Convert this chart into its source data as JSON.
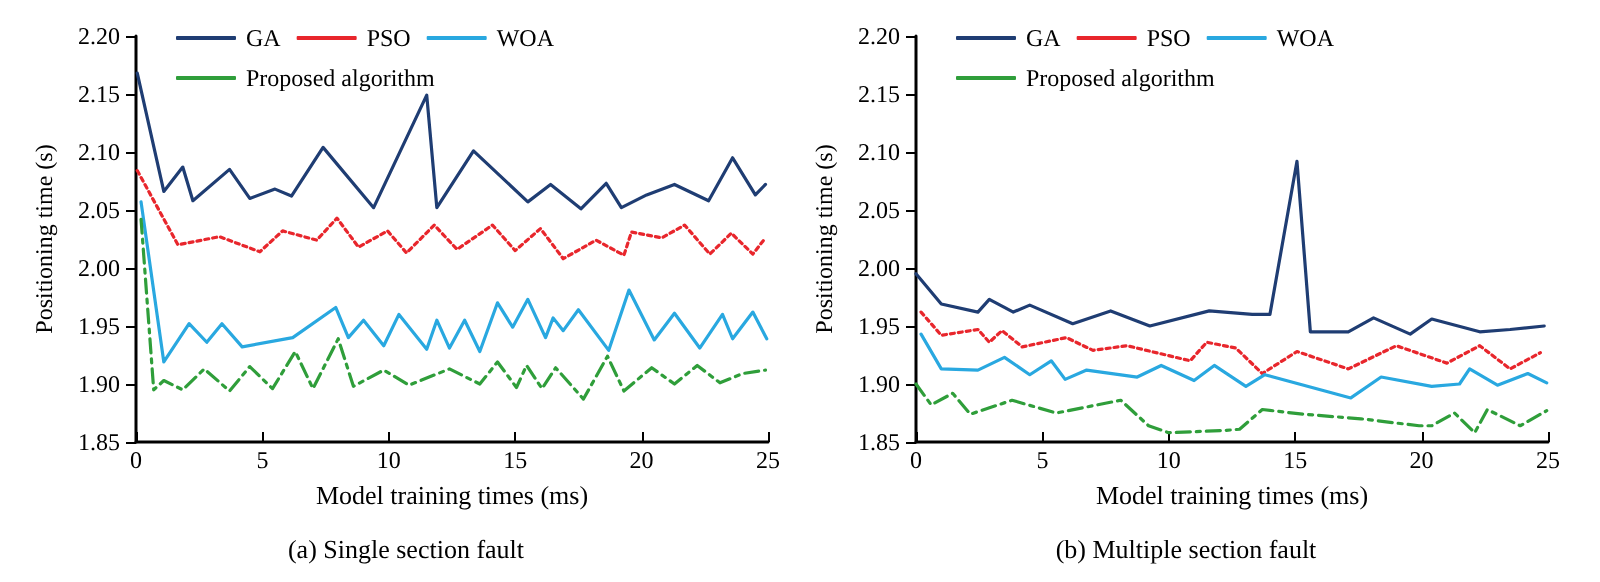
{
  "chart_data": [
    {
      "type": "line",
      "xlabel": "Model training times (ms)",
      "ylabel": "Positioning time (s)",
      "annotations": [
        "(a) Single section fault"
      ],
      "xlim": [
        0,
        25
      ],
      "xticks": [
        0,
        5,
        10,
        15,
        20,
        25
      ],
      "ylim": [
        1.85,
        2.2
      ],
      "yticks": [
        {
          "value": 1.85,
          "label": "1.85"
        },
        {
          "value": 1.9,
          "label": "1.90"
        },
        {
          "value": 1.95,
          "label": "1.95"
        },
        {
          "value": 2.0,
          "label": "2.00"
        },
        {
          "value": 2.05,
          "label": "2.05"
        },
        {
          "value": 2.1,
          "label": "2.10"
        },
        {
          "value": 2.15,
          "label": "2.15"
        },
        {
          "value": 2.2,
          "label": "2.20"
        }
      ],
      "grid": false,
      "legend": "top",
      "marker": "none",
      "series": [
        {
          "name": "GA",
          "color": "#1f3d73",
          "line_style": "solid",
          "x": [
            0.05,
            1.1,
            1.85,
            2.25,
            3.7,
            4.5,
            5.5,
            6.15,
            7.4,
            9.4,
            11.5,
            11.9,
            13.35,
            15.5,
            16.4,
            17.6,
            18.6,
            19.2,
            20.2,
            21.3,
            22.65,
            23.6,
            24.5,
            24.9
          ],
          "values": [
            2.168,
            2.066,
            2.087,
            2.058,
            2.085,
            2.06,
            2.068,
            2.062,
            2.104,
            2.052,
            2.149,
            2.052,
            2.101,
            2.057,
            2.072,
            2.051,
            2.073,
            2.052,
            2.063,
            2.072,
            2.058,
            2.095,
            2.063,
            2.072
          ]
        },
        {
          "name": "PSO",
          "color": "#e8262c",
          "line_style": "dotted",
          "x": [
            0.05,
            1.66,
            3.3,
            4.9,
            5.8,
            7.15,
            7.95,
            8.8,
            9.95,
            10.7,
            11.8,
            12.7,
            14.1,
            15.0,
            16.0,
            16.9,
            18.2,
            19.3,
            19.6,
            20.8,
            21.7,
            22.7,
            23.55,
            24.4,
            24.9
          ],
          "values": [
            2.084,
            2.02,
            2.027,
            2.014,
            2.032,
            2.024,
            2.043,
            2.018,
            2.032,
            2.013,
            2.037,
            2.016,
            2.037,
            2.015,
            2.034,
            2.008,
            2.024,
            2.011,
            2.031,
            2.026,
            2.037,
            2.012,
            2.03,
            2.012,
            2.026
          ]
        },
        {
          "name": "WOA",
          "color": "#29a8e0",
          "line_style": "solid",
          "x": [
            0.2,
            1.1,
            2.1,
            2.8,
            3.4,
            4.2,
            6.2,
            7.9,
            8.4,
            9.0,
            9.8,
            10.4,
            11.5,
            11.9,
            12.4,
            13.0,
            13.6,
            14.3,
            14.9,
            15.5,
            16.2,
            16.5,
            16.9,
            17.5,
            18.7,
            19.5,
            20.5,
            21.3,
            22.3,
            23.2,
            23.6,
            24.4,
            24.95
          ],
          "values": [
            2.057,
            1.919,
            1.952,
            1.936,
            1.952,
            1.932,
            1.94,
            1.966,
            1.94,
            1.955,
            1.933,
            1.96,
            1.93,
            1.955,
            1.931,
            1.955,
            1.928,
            1.97,
            1.949,
            1.973,
            1.94,
            1.957,
            1.946,
            1.964,
            1.929,
            1.981,
            1.938,
            1.961,
            1.931,
            1.96,
            1.939,
            1.962,
            1.939
          ]
        },
        {
          "name": "Proposed algorithm",
          "color": "#2f9e3a",
          "line_style": "dashed",
          "x": [
            0.2,
            0.7,
            1.1,
            1.85,
            2.7,
            3.7,
            4.5,
            5.4,
            6.3,
            7.0,
            8.0,
            8.6,
            9.8,
            10.8,
            12.4,
            13.6,
            14.3,
            15.05,
            15.45,
            16.06,
            16.6,
            17.7,
            18.65,
            19.3,
            20.4,
            21.3,
            22.2,
            23.1,
            24.0,
            24.9
          ],
          "values": [
            2.042,
            1.895,
            1.903,
            1.895,
            1.913,
            1.894,
            1.915,
            1.896,
            1.928,
            1.896,
            1.939,
            1.898,
            1.912,
            1.899,
            1.913,
            1.9,
            1.919,
            1.897,
            1.916,
            1.896,
            1.914,
            1.887,
            1.924,
            1.894,
            1.914,
            1.9,
            1.916,
            1.901,
            1.909,
            1.912
          ]
        }
      ]
    },
    {
      "type": "line",
      "xlabel": "Model training times (ms)",
      "ylabel": "Positioning time (s)",
      "annotations": [
        "(b) Multiple section fault"
      ],
      "xlim": [
        0,
        25
      ],
      "xticks": [
        0,
        5,
        10,
        15,
        20,
        25
      ],
      "ylim": [
        1.85,
        2.2
      ],
      "yticks": [
        {
          "value": 1.85,
          "label": "1.85"
        },
        {
          "value": 1.9,
          "label": "1.90"
        },
        {
          "value": 1.95,
          "label": "1.95"
        },
        {
          "value": 2.0,
          "label": "2.00"
        },
        {
          "value": 2.05,
          "label": "2.05"
        },
        {
          "value": 2.1,
          "label": "2.10"
        },
        {
          "value": 2.15,
          "label": "2.15"
        },
        {
          "value": 2.2,
          "label": "2.20"
        }
      ],
      "grid": false,
      "legend": "top",
      "marker": "none",
      "series": [
        {
          "name": "GA",
          "color": "#1f3d73",
          "line_style": "solid",
          "x": [
            0,
            1.0,
            2.45,
            2.9,
            3.85,
            4.5,
            6.2,
            7.7,
            9.25,
            11.6,
            13.3,
            14.0,
            15.07,
            15.6,
            17.1,
            18.1,
            19.55,
            20.4,
            22.3,
            23.5,
            24.85
          ],
          "values": [
            1.995,
            1.969,
            1.962,
            1.973,
            1.962,
            1.968,
            1.952,
            1.963,
            1.95,
            1.963,
            1.96,
            1.96,
            2.092,
            1.945,
            1.945,
            1.957,
            1.943,
            1.956,
            1.945,
            1.947,
            1.95
          ]
        },
        {
          "name": "PSO",
          "color": "#e8262c",
          "line_style": "dotted",
          "x": [
            0.2,
            1.0,
            2.45,
            2.9,
            3.4,
            4.2,
            5.95,
            7.0,
            8.35,
            10.85,
            11.5,
            12.65,
            13.7,
            15.07,
            17.1,
            19.0,
            21.0,
            22.3,
            23.5,
            24.7
          ],
          "values": [
            1.962,
            1.942,
            1.947,
            1.936,
            1.946,
            1.932,
            1.94,
            1.929,
            1.933,
            1.92,
            1.936,
            1.931,
            1.909,
            1.928,
            1.913,
            1.933,
            1.918,
            1.933,
            1.913,
            1.927
          ]
        },
        {
          "name": "WOA",
          "color": "#29a8e0",
          "line_style": "solid",
          "x": [
            0.2,
            1.0,
            2.45,
            3.5,
            4.5,
            5.35,
            5.9,
            6.75,
            8.75,
            9.7,
            11.0,
            11.8,
            13.05,
            13.8,
            17.2,
            18.4,
            20.4,
            21.5,
            21.9,
            23.0,
            24.2,
            24.95
          ],
          "values": [
            1.943,
            1.913,
            1.912,
            1.923,
            1.908,
            1.92,
            1.904,
            1.912,
            1.906,
            1.916,
            1.903,
            1.916,
            1.898,
            1.908,
            1.888,
            1.906,
            1.898,
            1.9,
            1.913,
            1.899,
            1.909,
            1.901
          ]
        },
        {
          "name": "Proposed algorithm",
          "color": "#2f9e3a",
          "line_style": "dashed",
          "x": [
            0,
            0.6,
            1.45,
            2.15,
            3.8,
            5.55,
            8.1,
            9.2,
            10.0,
            12.25,
            12.8,
            13.7,
            15.3,
            17.6,
            19.9,
            20.4,
            21.3,
            22.1,
            22.6,
            23.9,
            24.95
          ],
          "values": [
            1.9,
            1.882,
            1.892,
            1.874,
            1.886,
            1.875,
            1.886,
            1.864,
            1.858,
            1.86,
            1.861,
            1.878,
            1.874,
            1.87,
            1.864,
            1.864,
            1.875,
            1.858,
            1.878,
            1.864,
            1.877
          ]
        }
      ]
    }
  ]
}
